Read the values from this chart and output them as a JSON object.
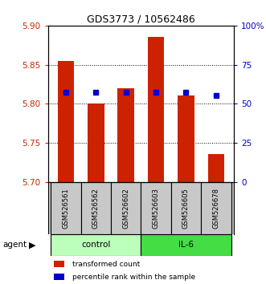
{
  "title": "GDS3773 / 10562486",
  "samples": [
    "GSM526561",
    "GSM526562",
    "GSM526602",
    "GSM526603",
    "GSM526605",
    "GSM526678"
  ],
  "bar_heights": [
    5.855,
    5.8,
    5.82,
    5.885,
    5.81,
    5.735
  ],
  "bar_base": 5.7,
  "blue_marker_values": [
    5.815,
    5.815,
    5.815,
    5.815,
    5.815,
    5.81
  ],
  "ylim": [
    5.7,
    5.9
  ],
  "yticks_left": [
    5.7,
    5.75,
    5.8,
    5.85,
    5.9
  ],
  "yticks_right": [
    0,
    25,
    50,
    75,
    100
  ],
  "ytick_right_labels": [
    "0",
    "25",
    "50",
    "75",
    "100%"
  ],
  "bar_color": "#cc2200",
  "marker_color": "#0000cc",
  "legend_items": [
    "transformed count",
    "percentile rank within the sample"
  ],
  "legend_colors": [
    "#cc2200",
    "#0000cc"
  ],
  "bar_width": 0.55,
  "control_color": "#bbffbb",
  "il6_color": "#44dd44",
  "xlabels_bg": "#c8c8c8"
}
